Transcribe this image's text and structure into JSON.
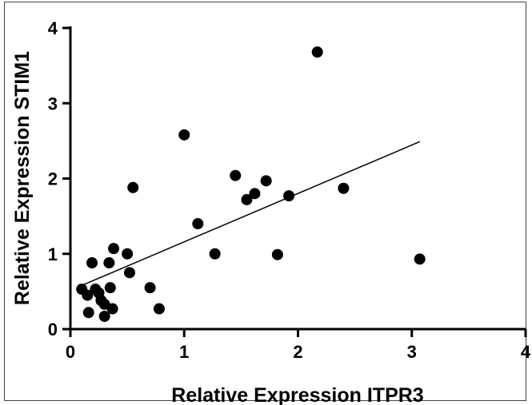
{
  "chart_data": {
    "type": "scatter",
    "title": "",
    "xlabel": "Relative Expression ITPR3",
    "ylabel": "Relative Expression STIM1",
    "xlim": [
      0,
      4
    ],
    "ylim": [
      0,
      4
    ],
    "x_ticks": [
      "0",
      "1",
      "2",
      "3",
      "4"
    ],
    "y_ticks": [
      "0",
      "1",
      "2",
      "3",
      "4"
    ],
    "grid": false,
    "legend": "none",
    "marker_color": "#000000",
    "points": [
      {
        "x": 0.1,
        "y": 0.53
      },
      {
        "x": 0.15,
        "y": 0.45
      },
      {
        "x": 0.16,
        "y": 0.22
      },
      {
        "x": 0.19,
        "y": 0.88
      },
      {
        "x": 0.22,
        "y": 0.53
      },
      {
        "x": 0.25,
        "y": 0.48
      },
      {
        "x": 0.27,
        "y": 0.38
      },
      {
        "x": 0.3,
        "y": 0.33
      },
      {
        "x": 0.3,
        "y": 0.17
      },
      {
        "x": 0.34,
        "y": 0.88
      },
      {
        "x": 0.35,
        "y": 0.55
      },
      {
        "x": 0.37,
        "y": 0.27
      },
      {
        "x": 0.38,
        "y": 1.07
      },
      {
        "x": 0.5,
        "y": 1.0
      },
      {
        "x": 0.52,
        "y": 0.75
      },
      {
        "x": 0.55,
        "y": 1.88
      },
      {
        "x": 0.7,
        "y": 0.55
      },
      {
        "x": 0.78,
        "y": 0.27
      },
      {
        "x": 1.0,
        "y": 2.58
      },
      {
        "x": 1.12,
        "y": 1.4
      },
      {
        "x": 1.27,
        "y": 1.0
      },
      {
        "x": 1.45,
        "y": 2.04
      },
      {
        "x": 1.55,
        "y": 1.72
      },
      {
        "x": 1.62,
        "y": 1.8
      },
      {
        "x": 1.72,
        "y": 1.97
      },
      {
        "x": 1.82,
        "y": 0.99
      },
      {
        "x": 1.92,
        "y": 1.77
      },
      {
        "x": 2.17,
        "y": 3.68
      },
      {
        "x": 2.4,
        "y": 1.87
      },
      {
        "x": 3.07,
        "y": 0.93
      }
    ],
    "fit_line": {
      "x": [
        0.1,
        3.07
      ],
      "y": [
        0.58,
        2.49
      ]
    }
  }
}
